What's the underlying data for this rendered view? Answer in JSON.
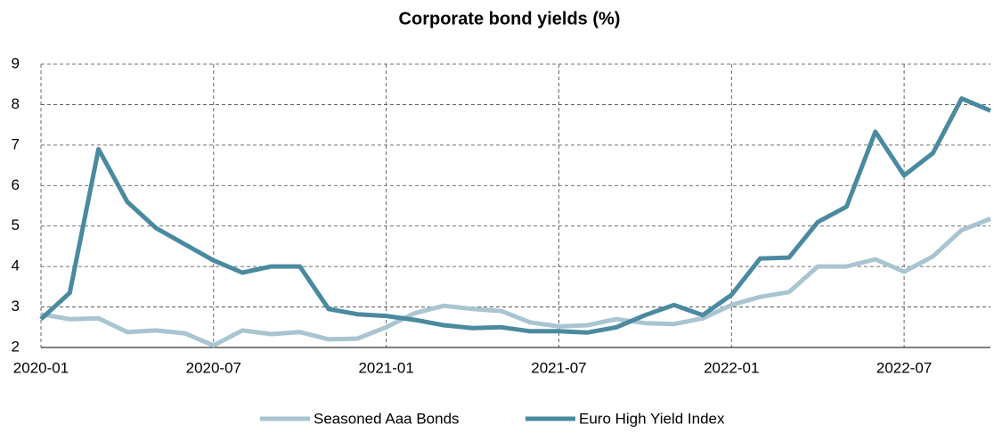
{
  "chart_data": {
    "type": "line",
    "title": "Corporate bond yields (%)",
    "x": [
      "2020-01",
      "2020-02",
      "2020-03",
      "2020-04",
      "2020-05",
      "2020-06",
      "2020-07",
      "2020-08",
      "2020-09",
      "2020-10",
      "2020-11",
      "2020-12",
      "2021-01",
      "2021-02",
      "2021-03",
      "2021-04",
      "2021-05",
      "2021-06",
      "2021-07",
      "2021-08",
      "2021-09",
      "2021-10",
      "2021-11",
      "2021-12",
      "2022-01",
      "2022-02",
      "2022-03",
      "2022-04",
      "2022-05",
      "2022-06",
      "2022-07",
      "2022-08",
      "2022-09",
      "2022-10"
    ],
    "series": [
      {
        "name": "Seasoned Aaa Bonds",
        "color": "#a8c5d1",
        "values": [
          2.82,
          2.7,
          2.72,
          2.38,
          2.42,
          2.35,
          2.05,
          2.42,
          2.33,
          2.38,
          2.2,
          2.22,
          2.5,
          2.85,
          3.03,
          2.95,
          2.9,
          2.62,
          2.52,
          2.55,
          2.7,
          2.6,
          2.58,
          2.72,
          3.05,
          3.25,
          3.37,
          4.0,
          4.0,
          4.18,
          3.87,
          4.25,
          4.9,
          5.18
        ]
      },
      {
        "name": "Euro High Yield Index",
        "color": "#4a8aa0",
        "values": [
          2.7,
          3.35,
          6.9,
          5.6,
          4.95,
          4.55,
          4.15,
          3.85,
          4.0,
          4.0,
          2.95,
          2.82,
          2.78,
          2.68,
          2.55,
          2.48,
          2.5,
          2.4,
          2.4,
          2.37,
          2.5,
          2.8,
          3.05,
          2.8,
          3.3,
          4.2,
          4.22,
          5.1,
          5.48,
          7.33,
          6.25,
          6.8,
          8.15,
          7.85
        ]
      }
    ],
    "xlim": [
      "2020-01",
      "2022-10"
    ],
    "xticks": [
      "2020-01",
      "2020-07",
      "2021-01",
      "2021-07",
      "2022-01",
      "2022-07"
    ],
    "ylim": [
      2,
      9
    ],
    "yticks": [
      2,
      3,
      4,
      5,
      6,
      7,
      8,
      9
    ],
    "grid": true,
    "legend": "bottom"
  }
}
